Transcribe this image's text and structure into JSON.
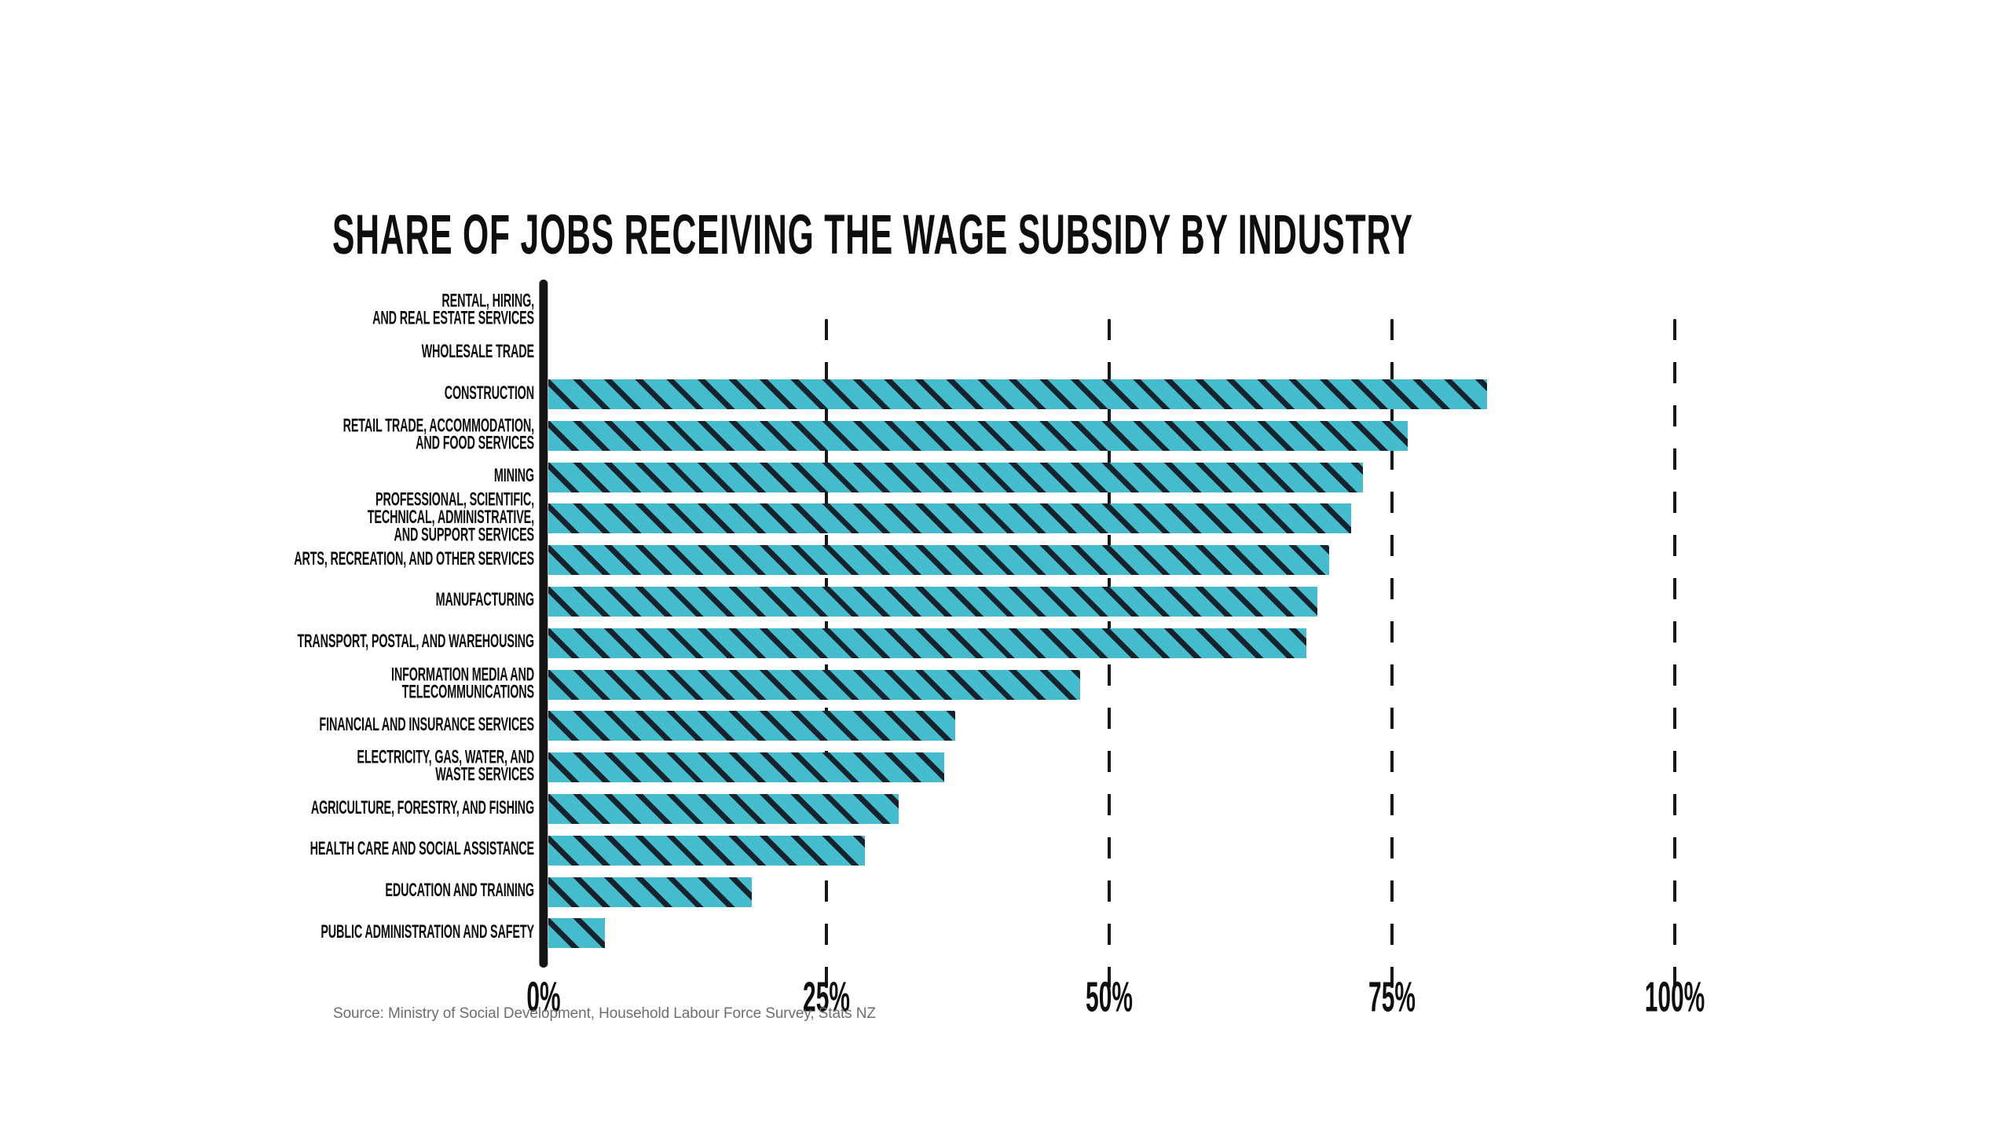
{
  "page": {
    "background": "#ffffff"
  },
  "chart_data": {
    "type": "bar",
    "orientation": "horizontal",
    "title": "SHARE OF JOBS RECEIVING THE WAGE SUBSIDY BY INDUSTRY",
    "source": "Source: Ministry of Social Development, Household Labour Force Survey, Stats NZ",
    "xlabel": "",
    "ylabel": "",
    "xlim": [
      0,
      100
    ],
    "grid": "dashed-vertical",
    "legend": "none",
    "bar_color": "#44bccd",
    "hatch_color": "#16222c",
    "hatch_pattern": "diagonal-backslash",
    "x_ticks": [
      {
        "value": 0,
        "label": "0%"
      },
      {
        "value": 25,
        "label": "25%"
      },
      {
        "value": 50,
        "label": "50%"
      },
      {
        "value": 75,
        "label": "75%"
      },
      {
        "value": 100,
        "label": "100%"
      }
    ],
    "categories": [
      {
        "label": "Rental, Hiring, and Real Estate Services",
        "label_lines": [
          "RENTAL, HIRING,",
          "AND REAL ESTATE SERVICES"
        ],
        "value": 0
      },
      {
        "label": "Wholesale Trade",
        "label_lines": [
          "WHOLESALE TRADE"
        ],
        "value": 0
      },
      {
        "label": "Construction",
        "label_lines": [
          "CONSTRUCTION"
        ],
        "value": 83
      },
      {
        "label": "Retail Trade, Accommodation, and Food Services",
        "label_lines": [
          "RETAIL TRADE, ACCOMMODATION,",
          "AND FOOD SERVICES"
        ],
        "value": 76
      },
      {
        "label": "Mining",
        "label_lines": [
          "MINING"
        ],
        "value": 72
      },
      {
        "label": "Professional, Scientific, Technical, Administrative, and Support Services",
        "label_lines": [
          "PROFESSIONAL, SCIENTIFIC,",
          "TECHNICAL, ADMINISTRATIVE,",
          "AND SUPPORT SERVICES"
        ],
        "value": 71
      },
      {
        "label": "Arts, Recreation, and Other Services",
        "label_lines": [
          "ARTS, RECREATION, AND OTHER SERVICES"
        ],
        "value": 69
      },
      {
        "label": "Manufacturing",
        "label_lines": [
          "MANUFACTURING"
        ],
        "value": 68
      },
      {
        "label": "Transport, Postal, and Warehousing",
        "label_lines": [
          "TRANSPORT, POSTAL, AND WAREHOUSING"
        ],
        "value": 67
      },
      {
        "label": "Information Media and Telecommunications",
        "label_lines": [
          "INFORMATION MEDIA AND",
          "TELECOMMUNICATIONS"
        ],
        "value": 47
      },
      {
        "label": "Financial and Insurance Services",
        "label_lines": [
          "FINANCIAL AND INSURANCE SERVICES"
        ],
        "value": 36
      },
      {
        "label": "Electricity, Gas, Water, and Waste Services",
        "label_lines": [
          "ELECTRICITY, GAS, WATER, AND",
          "WASTE SERVICES"
        ],
        "value": 35
      },
      {
        "label": "Agriculture, Forestry, and Fishing",
        "label_lines": [
          "AGRICULTURE, FORESTRY, AND FISHING"
        ],
        "value": 31
      },
      {
        "label": "Health Care and Social Assistance",
        "label_lines": [
          "HEALTH CARE AND SOCIAL ASSISTANCE"
        ],
        "value": 28
      },
      {
        "label": "Education and Training",
        "label_lines": [
          "EDUCATION AND TRAINING"
        ],
        "value": 18
      },
      {
        "label": "Public Administration and Safety",
        "label_lines": [
          "PUBLIC ADMINISTRATION AND SAFETY"
        ],
        "value": 5
      }
    ]
  }
}
